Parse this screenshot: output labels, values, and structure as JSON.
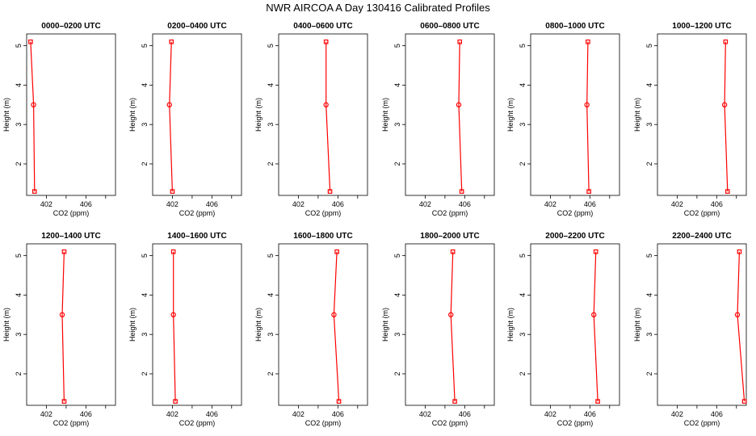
{
  "title": "NWR AIRCOA A  Day 130416  Calibrated Profiles",
  "colors": {
    "line": "#ff0000",
    "axis": "#000000",
    "background": "#ffffff"
  },
  "chart_data": {
    "type": "line",
    "xlabel": "CO2 (ppm)",
    "ylabel": "Height (m)",
    "xlim": [
      400,
      409
    ],
    "ylim": [
      1.2,
      5.3
    ],
    "xticks": [
      402,
      406
    ],
    "yticks": [
      2,
      3,
      4,
      5
    ],
    "heights": [
      5.1,
      3.5,
      1.3
    ],
    "panels": [
      {
        "title": "0000–0200 UTC",
        "co2": [
          400.4,
          400.7,
          400.8
        ]
      },
      {
        "title": "0200–0400 UTC",
        "co2": [
          401.9,
          401.7,
          402.0
        ]
      },
      {
        "title": "0400–0600 UTC",
        "co2": [
          404.8,
          404.8,
          405.2
        ]
      },
      {
        "title": "0600–0800 UTC",
        "co2": [
          405.5,
          405.4,
          405.7
        ]
      },
      {
        "title": "0800–1000 UTC",
        "co2": [
          405.8,
          405.7,
          405.9
        ]
      },
      {
        "title": "1000–1200 UTC",
        "co2": [
          406.9,
          406.8,
          407.1
        ]
      },
      {
        "title": "1200–1400 UTC",
        "co2": [
          403.8,
          403.6,
          403.8
        ]
      },
      {
        "title": "1400–1600 UTC",
        "co2": [
          402.1,
          402.1,
          402.3
        ]
      },
      {
        "title": "1600–1800 UTC",
        "co2": [
          405.9,
          405.6,
          406.1
        ]
      },
      {
        "title": "1800–2000 UTC",
        "co2": [
          404.8,
          404.6,
          405.0
        ]
      },
      {
        "title": "2000–2200 UTC",
        "co2": [
          406.6,
          406.4,
          406.8
        ]
      },
      {
        "title": "2200–2400 UTC",
        "co2": [
          408.3,
          408.1,
          408.8
        ]
      }
    ]
  }
}
